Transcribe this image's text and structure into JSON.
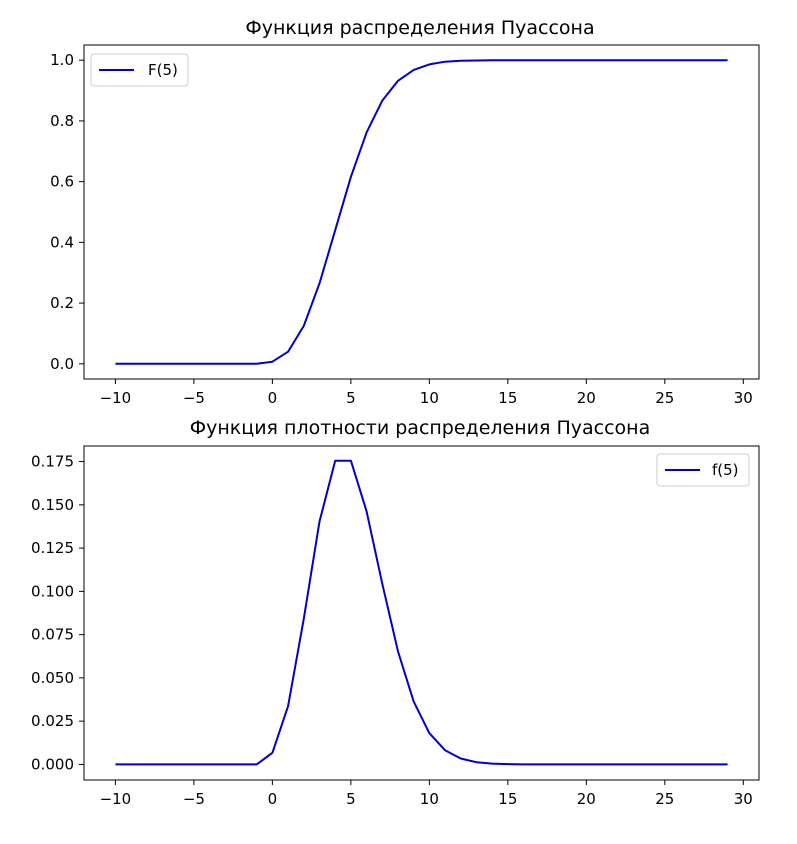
{
  "chart_data": [
    {
      "type": "line",
      "title": "Функция распределения Пуассона",
      "xlabel": "",
      "ylabel": "",
      "xlim": [
        -12,
        31
      ],
      "ylim": [
        -0.05,
        1.05
      ],
      "xticks": [
        -10,
        -5,
        0,
        5,
        10,
        15,
        20,
        25,
        30
      ],
      "xtick_labels": [
        "−10",
        "−5",
        "0",
        "5",
        "10",
        "15",
        "20",
        "25",
        "30"
      ],
      "yticks": [
        0.0,
        0.2,
        0.4,
        0.6,
        0.8,
        1.0
      ],
      "ytick_labels": [
        "0.0",
        "0.2",
        "0.4",
        "0.6",
        "0.8",
        "1.0"
      ],
      "grid": false,
      "legend_position": "upper-left",
      "series": [
        {
          "name": "F(5)",
          "color": "#0000cc",
          "x": [
            -10,
            -9,
            -8,
            -7,
            -6,
            -5,
            -4,
            -3,
            -2,
            -1,
            0,
            1,
            2,
            3,
            4,
            5,
            6,
            7,
            8,
            9,
            10,
            11,
            12,
            13,
            14,
            15,
            16,
            17,
            18,
            19,
            20,
            21,
            22,
            23,
            24,
            25,
            26,
            27,
            28,
            29
          ],
          "y": [
            0,
            0,
            0,
            0,
            0,
            0,
            0,
            0,
            0,
            0,
            0.007,
            0.04,
            0.125,
            0.265,
            0.44,
            0.616,
            0.762,
            0.867,
            0.932,
            0.968,
            0.986,
            0.995,
            0.998,
            0.999,
            1.0,
            1.0,
            1.0,
            1.0,
            1.0,
            1.0,
            1.0,
            1.0,
            1.0,
            1.0,
            1.0,
            1.0,
            1.0,
            1.0,
            1.0,
            1.0
          ]
        }
      ]
    },
    {
      "type": "line",
      "title": "Функция плотности распределения Пуассона",
      "xlabel": "",
      "ylabel": "",
      "xlim": [
        -12,
        31
      ],
      "ylim": [
        -0.009,
        0.184
      ],
      "xticks": [
        -10,
        -5,
        0,
        5,
        10,
        15,
        20,
        25,
        30
      ],
      "xtick_labels": [
        "−10",
        "−5",
        "0",
        "5",
        "10",
        "15",
        "20",
        "25",
        "30"
      ],
      "yticks": [
        0.0,
        0.025,
        0.05,
        0.075,
        0.1,
        0.125,
        0.15,
        0.175
      ],
      "ytick_labels": [
        "0.000",
        "0.025",
        "0.050",
        "0.075",
        "0.100",
        "0.125",
        "0.150",
        "0.175"
      ],
      "grid": false,
      "legend_position": "upper-right",
      "series": [
        {
          "name": "f(5)",
          "color": "#0000cc",
          "x": [
            -10,
            -9,
            -8,
            -7,
            -6,
            -5,
            -4,
            -3,
            -2,
            -1,
            0,
            1,
            2,
            3,
            4,
            5,
            6,
            7,
            8,
            9,
            10,
            11,
            12,
            13,
            14,
            15,
            16,
            17,
            18,
            19,
            20,
            21,
            22,
            23,
            24,
            25,
            26,
            27,
            28,
            29
          ],
          "y": [
            0,
            0,
            0,
            0,
            0,
            0,
            0,
            0,
            0,
            0,
            0.0067,
            0.0337,
            0.0842,
            0.1404,
            0.1755,
            0.1755,
            0.1462,
            0.1044,
            0.0653,
            0.0363,
            0.0181,
            0.0082,
            0.0034,
            0.0013,
            0.0005,
            0.0002,
            0,
            0,
            0,
            0,
            0,
            0,
            0,
            0,
            0,
            0,
            0,
            0,
            0,
            0
          ]
        }
      ]
    }
  ]
}
